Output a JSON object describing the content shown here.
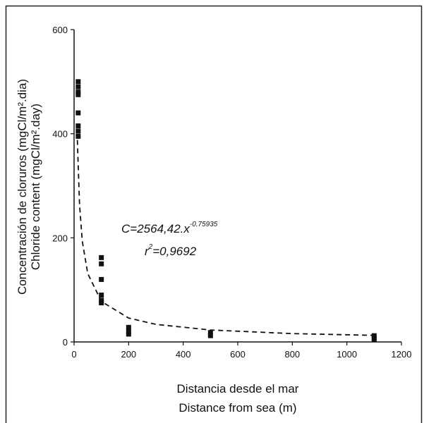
{
  "chart_data": {
    "type": "scatter",
    "xlabel": [
      "Distancia desde el mar",
      "Distance from sea (m)"
    ],
    "ylabel": [
      "Concentración de cloruros (mgCl/m².dia)",
      "Chloride content (mgCl/m².day)"
    ],
    "annotations": [
      {
        "text": "C=2564,42.x",
        "superscript": "-0.75935"
      },
      {
        "text": "r",
        "superscript": "2",
        "suffix": "=0,9692"
      }
    ],
    "xlim": [
      0,
      1200
    ],
    "ylim": [
      0,
      600
    ],
    "xticks": [
      0,
      200,
      400,
      600,
      800,
      1000,
      1200
    ],
    "yticks": [
      0,
      200,
      400,
      600
    ],
    "series": [
      {
        "type": "scatter",
        "color": "#111111",
        "x": [
          15,
          15,
          15,
          15,
          15,
          15,
          15,
          15,
          100,
          100,
          100,
          100,
          100,
          100,
          200,
          200,
          200,
          500,
          500,
          1100,
          1100,
          1100
        ],
        "values": [
          500,
          490,
          480,
          475,
          440,
          415,
          405,
          395,
          162,
          150,
          120,
          90,
          80,
          75,
          28,
          20,
          15,
          18,
          12,
          12,
          8,
          5
        ]
      },
      {
        "type": "line",
        "style": "dashed",
        "color": "#111111",
        "x": [
          12,
          20,
          30,
          50,
          100,
          200,
          300,
          500,
          800,
          1100
        ],
        "values": [
          388,
          264,
          194,
          131.5,
          77.8,
          45.9,
          33.7,
          22.9,
          16.0,
          12.6
        ]
      }
    ]
  }
}
